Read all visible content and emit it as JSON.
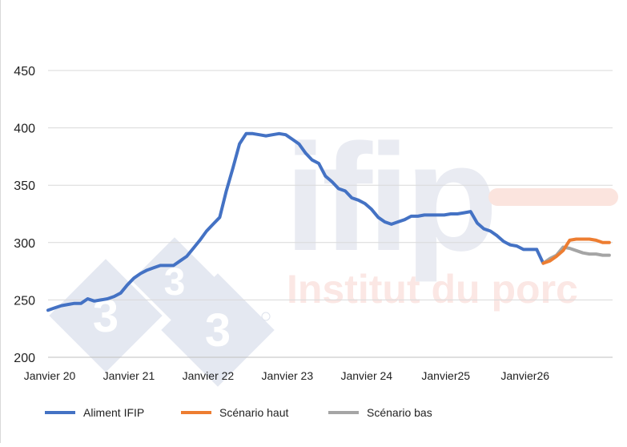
{
  "colors": {
    "aliment": "#4472C4",
    "haut": "#ED7D31",
    "bas": "#A5A5A5",
    "grid": "#d9d9d9"
  },
  "watermark": {
    "logo_text": "ifip",
    "tagline": "Institut du porc",
    "badge_digits": [
      "3",
      "3",
      "3"
    ]
  },
  "chart_data": {
    "type": "line",
    "ylim": [
      200,
      450
    ],
    "yticks": [
      200,
      250,
      300,
      350,
      400,
      450
    ],
    "grid": true,
    "legend_position": "bottom",
    "x_ticks": [
      {
        "label": "Janvier 20",
        "x": 0
      },
      {
        "label": "Janvier 21",
        "x": 12
      },
      {
        "label": "Janvier 22",
        "x": 24
      },
      {
        "label": "Janvier  23",
        "x": 36
      },
      {
        "label": "Janvier 24",
        "x": 48
      },
      {
        "label": "Janvier25",
        "x": 60
      },
      {
        "label": "Janvier26",
        "x": 72
      }
    ],
    "series": [
      {
        "name": "Aliment IFIP",
        "color_key": "aliment",
        "x": [
          0,
          1,
          2,
          3,
          4,
          5,
          6,
          7,
          8,
          9,
          10,
          11,
          12,
          13,
          14,
          15,
          16,
          17,
          18,
          19,
          20,
          21,
          22,
          23,
          24,
          25,
          26,
          27,
          28,
          29,
          30,
          31,
          32,
          33,
          34,
          35,
          36,
          37,
          38,
          39,
          40,
          41,
          42,
          43,
          44,
          45,
          46,
          47,
          48,
          49,
          50,
          51,
          52,
          53,
          54,
          55,
          56,
          57,
          58,
          59,
          60,
          61,
          62,
          63,
          64,
          65,
          66,
          67,
          68,
          69,
          70,
          71,
          72,
          73,
          74
        ],
        "y": [
          241,
          243,
          245,
          246,
          247,
          247,
          251,
          249,
          250,
          251,
          253,
          256,
          263,
          269,
          273,
          276,
          278,
          280,
          280,
          280,
          284,
          288,
          295,
          302,
          310,
          316,
          322,
          345,
          365,
          386,
          395,
          395,
          394,
          393,
          394,
          395,
          394,
          390,
          386,
          378,
          372,
          369,
          358,
          353,
          347,
          345,
          339,
          337,
          334,
          329,
          322,
          318,
          316,
          318,
          320,
          323,
          323,
          324,
          324,
          324,
          324,
          325,
          325,
          326,
          327,
          317,
          312,
          310,
          306,
          301,
          298,
          297,
          294,
          294,
          294
        ]
      },
      {
        "name": "Scénario haut",
        "color_key": "haut",
        "x": [
          75,
          76,
          77,
          78,
          79,
          80,
          81,
          82,
          83,
          84,
          85
        ],
        "y": [
          282,
          284,
          288,
          293,
          302,
          303,
          303,
          303,
          302,
          300,
          300
        ]
      },
      {
        "name": "Scénario bas",
        "color_key": "bas",
        "x": [
          75,
          76,
          77,
          78,
          79,
          80,
          81,
          82,
          83,
          84,
          85
        ],
        "y": [
          282,
          286,
          289,
          296,
          295,
          293,
          291,
          290,
          290,
          289,
          289
        ]
      },
      {
        "name": "Aliment IFIP",
        "color_key": "aliment",
        "legend": false,
        "x": [
          74,
          75
        ],
        "y": [
          294,
          282
        ]
      }
    ]
  }
}
